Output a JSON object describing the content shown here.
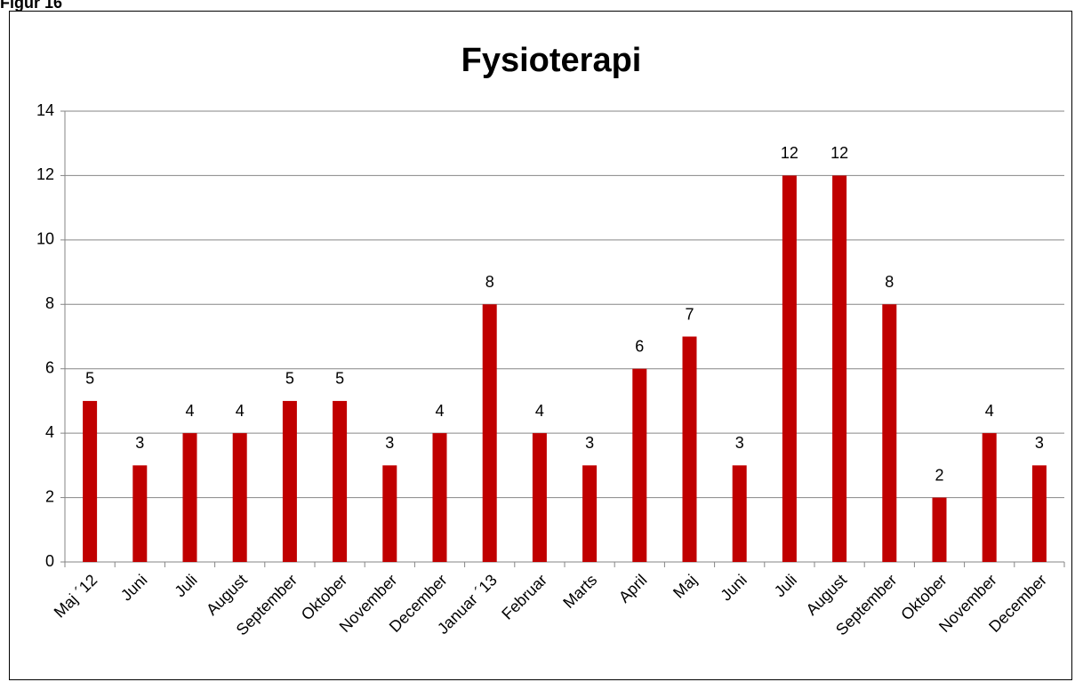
{
  "figure_label": "Figur 16",
  "chart_data": {
    "type": "bar",
    "title": "Fysioterapi",
    "categories": [
      "Maj ´12",
      "Juni",
      "Juli",
      "August",
      "September",
      "Oktober",
      "November",
      "December",
      "Januar ´13",
      "Februar",
      "Marts",
      "April",
      "Maj",
      "Juni",
      "Juli",
      "August",
      "September",
      "Oktober",
      "November",
      "December"
    ],
    "values": [
      5,
      3,
      4,
      4,
      5,
      5,
      3,
      4,
      8,
      4,
      3,
      6,
      7,
      3,
      12,
      12,
      8,
      2,
      4,
      3
    ],
    "color": "#c00000",
    "ylim": [
      0,
      14
    ],
    "yticks": [
      0,
      2,
      4,
      6,
      8,
      10,
      12,
      14
    ],
    "grid": true
  }
}
